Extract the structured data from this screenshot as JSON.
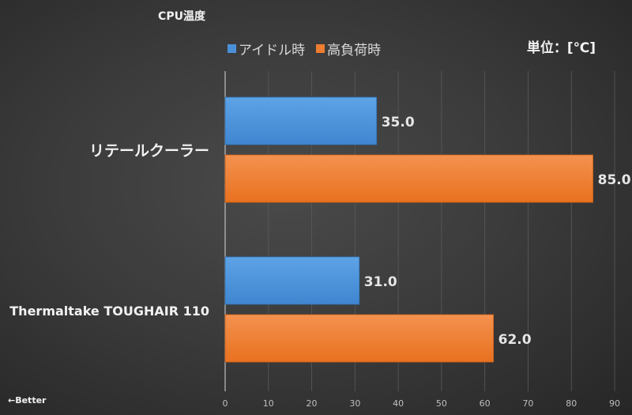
{
  "chart_data": {
    "type": "bar",
    "orientation": "horizontal",
    "title": "CPU温度",
    "unit_label": "単位：[℃]",
    "annotation": "←Better",
    "categories": [
      "リテールクーラー",
      "Thermaltake TOUGHAIR 110"
    ],
    "series": [
      {
        "name": "アイドル時",
        "color": "#4a90d9",
        "values": [
          35.0,
          31.0
        ]
      },
      {
        "name": "高負荷時",
        "color": "#ed7d31",
        "values": [
          85.0,
          62.0
        ]
      }
    ],
    "xlim": [
      0,
      90
    ],
    "xticks": [
      0,
      10,
      20,
      30,
      40,
      50,
      60,
      70,
      80,
      90
    ],
    "grid": true,
    "legend_position": "top"
  }
}
